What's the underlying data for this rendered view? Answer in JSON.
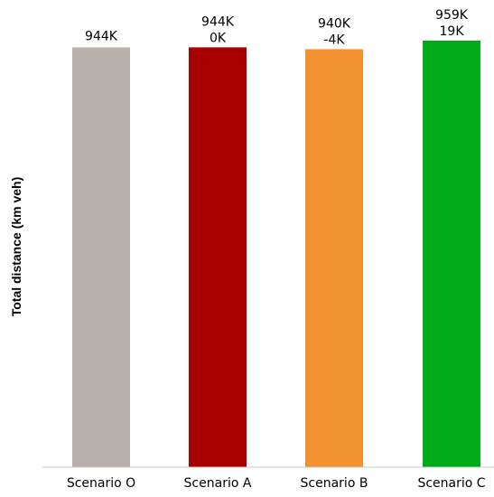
{
  "chart_data": {
    "type": "bar",
    "title": "",
    "xlabel": "",
    "ylabel": "Total distance (km veh)",
    "ylim": [
      0,
      1000000
    ],
    "grid": false,
    "legend": "none",
    "categories": [
      "Scenario O",
      "Scenario A",
      "Scenario B",
      "Scenario C"
    ],
    "values": [
      944000,
      944000,
      940000,
      959000
    ],
    "value_labels": [
      "944K",
      "944K",
      "940K",
      "959K"
    ],
    "difference_labels": [
      "",
      "0K",
      "-4K",
      "19K"
    ],
    "colors": [
      "#b8b1ab",
      "#a80000",
      "#f39230",
      "#00ab1a"
    ]
  }
}
